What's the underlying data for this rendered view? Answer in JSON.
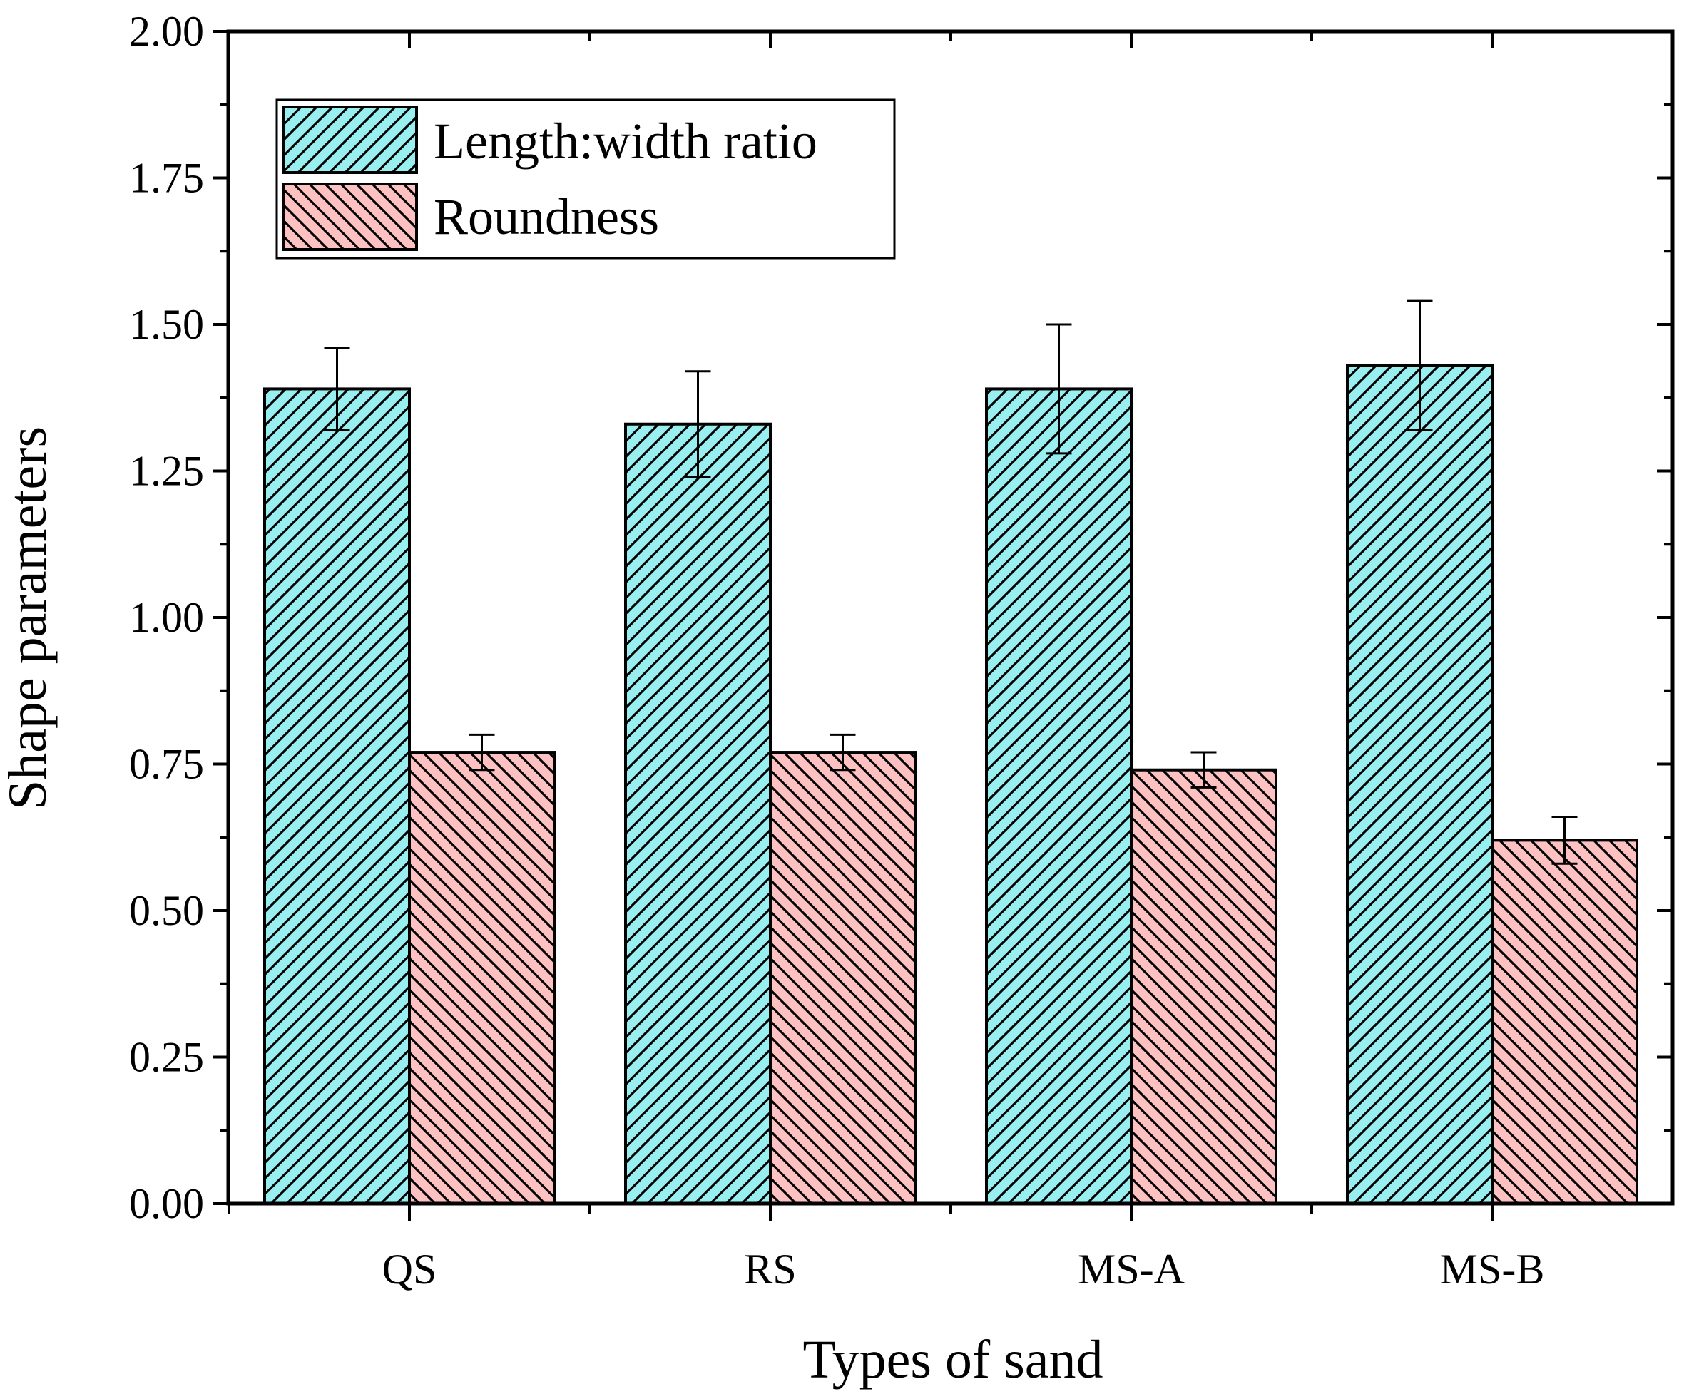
{
  "colors": {
    "length_width": "#99eef0",
    "roundness": "#fdc1c1",
    "axis": "#000000",
    "hatch": "#000000"
  },
  "chart_data": {
    "type": "bar",
    "title": "",
    "xlabel": "Types of sand",
    "ylabel": "Shape parameters",
    "ylim": [
      0,
      2
    ],
    "yticks": [
      "0.00",
      "0.25",
      "0.50",
      "0.75",
      "1.00",
      "1.25",
      "1.50",
      "1.75",
      "2.00"
    ],
    "categories": [
      "QS",
      "RS",
      "MS-A",
      "MS-B"
    ],
    "legend_position": "top-left",
    "series": [
      {
        "name": "Length:width ratio",
        "values": [
          1.39,
          1.33,
          1.39,
          1.43
        ],
        "errors": [
          0.07,
          0.09,
          0.11,
          0.11
        ],
        "hatch": "forward-diagonal"
      },
      {
        "name": "Roundness",
        "values": [
          0.77,
          0.77,
          0.74,
          0.62
        ],
        "errors": [
          0.03,
          0.03,
          0.03,
          0.04
        ],
        "hatch": "back-diagonal"
      }
    ]
  }
}
